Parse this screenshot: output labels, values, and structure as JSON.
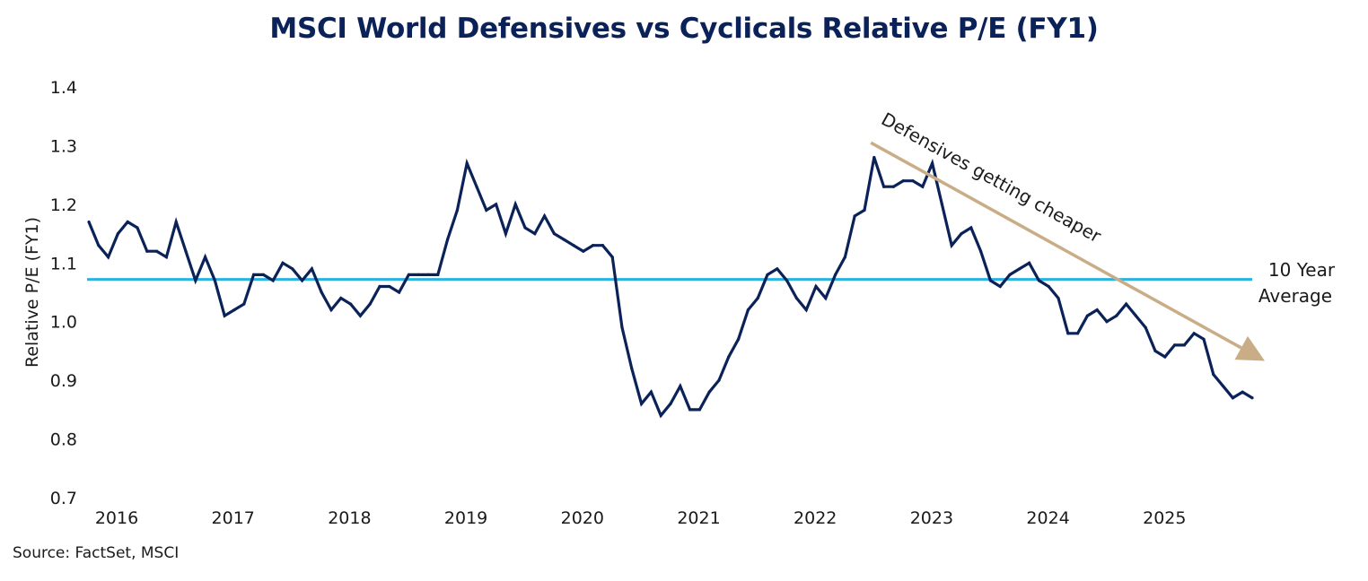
{
  "chart_data": {
    "type": "line",
    "title": "MSCI World Defensives vs Cyclicals Relative P/E (FY1)",
    "xlabel": "",
    "ylabel": "Relative P/E (FY1)",
    "ylim": [
      0.7,
      1.4
    ],
    "yticks": [
      "1.4",
      "1.3",
      "1.2",
      "1.1",
      "1.0",
      "0.9",
      "0.8",
      "0.7"
    ],
    "ytick_values": [
      1.4,
      1.3,
      1.2,
      1.1,
      1.0,
      0.9,
      0.8,
      0.7
    ],
    "xticks": [
      "2016",
      "2017",
      "2018",
      "2019",
      "2020",
      "2021",
      "2022",
      "2023",
      "2024",
      "2025"
    ],
    "x_start": "2016-01",
    "x_frequency": "monthly",
    "grid": false,
    "series": [
      {
        "name": "Defensives vs Cyclicals Relative P/E (FY1)",
        "color": "#0b2259",
        "values": [
          1.17,
          1.13,
          1.11,
          1.15,
          1.17,
          1.16,
          1.12,
          1.12,
          1.11,
          1.17,
          1.12,
          1.07,
          1.11,
          1.07,
          1.01,
          1.02,
          1.03,
          1.08,
          1.08,
          1.07,
          1.1,
          1.09,
          1.07,
          1.09,
          1.05,
          1.02,
          1.04,
          1.03,
          1.01,
          1.03,
          1.06,
          1.06,
          1.05,
          1.08,
          1.08,
          1.08,
          1.08,
          1.14,
          1.19,
          1.27,
          1.23,
          1.19,
          1.2,
          1.15,
          1.2,
          1.16,
          1.15,
          1.18,
          1.15,
          1.14,
          1.13,
          1.12,
          1.13,
          1.13,
          1.11,
          0.99,
          0.92,
          0.86,
          0.88,
          0.84,
          0.86,
          0.89,
          0.85,
          0.85,
          0.88,
          0.9,
          0.94,
          0.97,
          1.02,
          1.04,
          1.08,
          1.09,
          1.07,
          1.04,
          1.02,
          1.06,
          1.04,
          1.08,
          1.11,
          1.18,
          1.19,
          1.28,
          1.23,
          1.23,
          1.24,
          1.24,
          1.23,
          1.27,
          1.2,
          1.13,
          1.15,
          1.16,
          1.12,
          1.07,
          1.06,
          1.08,
          1.09,
          1.1,
          1.07,
          1.06,
          1.04,
          0.98,
          0.98,
          1.01,
          1.02,
          1.0,
          1.01,
          1.03,
          1.01,
          0.99,
          0.95,
          0.94,
          0.96,
          0.96,
          0.98,
          0.97,
          0.91,
          0.89,
          0.87,
          0.88,
          0.87
        ]
      }
    ],
    "reference_line": {
      "name": "10 Year Average",
      "value": 1.072,
      "color": "#29b3e3",
      "label_line1": "10 Year",
      "label_line2": "Average"
    },
    "annotations": [
      {
        "text": "Defensives getting cheaper",
        "type": "arrow",
        "color": "#c8ad86",
        "from": {
          "x_index": 84,
          "y": 1.305
        },
        "to": {
          "x_index": 120,
          "y": 0.93
        }
      }
    ],
    "source": "Source: FactSet, MSCI"
  }
}
